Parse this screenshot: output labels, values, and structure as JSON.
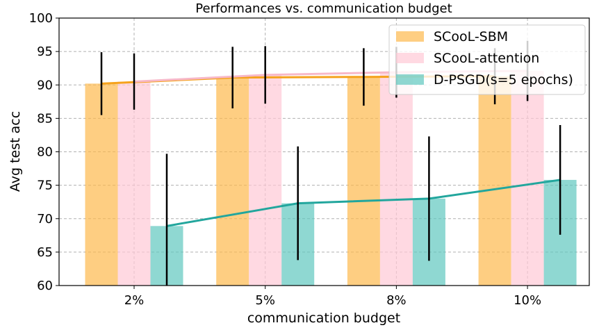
{
  "chart_data": {
    "type": "bar",
    "title": "Performances vs. communication budget",
    "x_label": "communication budget",
    "y_label": "Avg test acc",
    "categories": [
      "2%",
      "5%",
      "8%",
      "10%"
    ],
    "series": [
      {
        "name": "SCooL-SBM",
        "color": "#fdb94d",
        "line_color": "#f5a21c",
        "values": [
          90.2,
          91.1,
          91.2,
          91.3
        ],
        "errors": [
          4.7,
          4.6,
          4.3,
          4.2
        ]
      },
      {
        "name": "SCooL-attention",
        "color": "#ffc9d6",
        "line_color": "#f7b8c8",
        "values": [
          90.5,
          91.5,
          91.9,
          92.1
        ],
        "errors": [
          4.2,
          4.3,
          3.8,
          4.5
        ]
      },
      {
        "name": "D-PSGD(s=5 epochs)",
        "color": "#5fc7bf",
        "line_color": "#22a69d",
        "values": [
          68.9,
          72.3,
          73.0,
          75.8
        ],
        "errors": [
          10.8,
          8.5,
          9.3,
          8.2
        ]
      }
    ],
    "ylim": [
      60,
      100
    ],
    "yticks": [
      60,
      65,
      70,
      75,
      80,
      85,
      90,
      95,
      100
    ],
    "grid": true,
    "legend": "upper right"
  }
}
